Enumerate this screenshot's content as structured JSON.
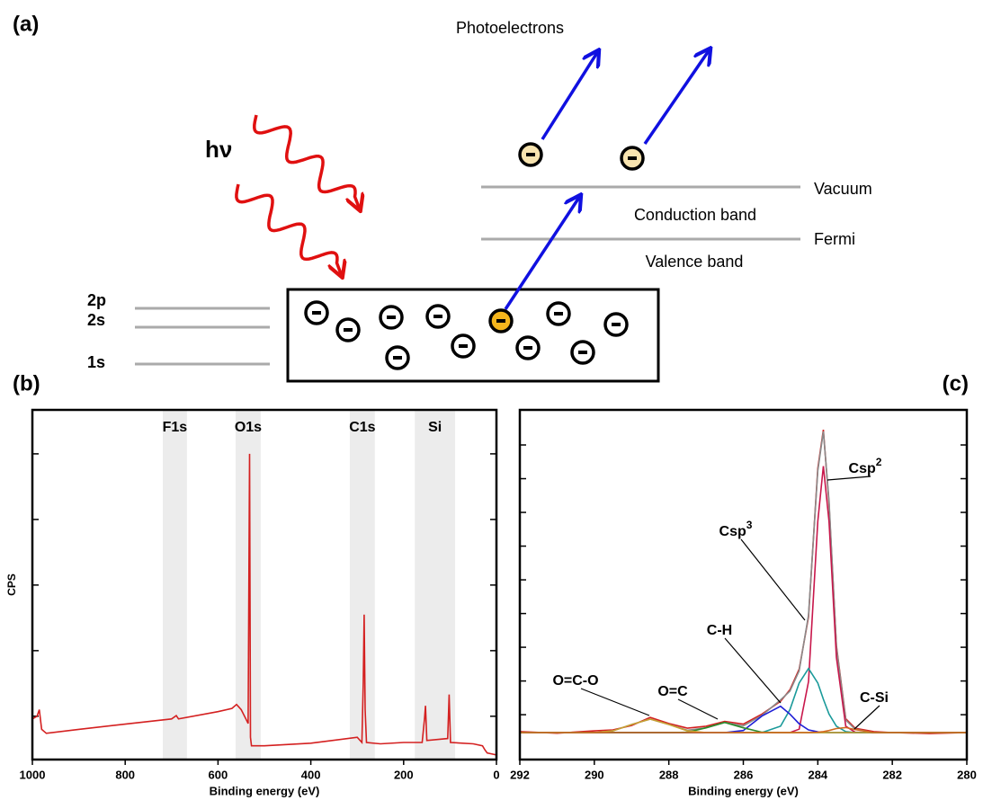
{
  "diagram": {
    "panel": "(a)",
    "photoelectrons": "Photoelectrons",
    "photon": "hν",
    "vacuum": "Vacuum",
    "conduction": "Conduction band",
    "fermi": "Fermi",
    "valence": "Valence band",
    "levels": [
      "2p",
      "2s",
      "1s"
    ]
  },
  "chart_data": [
    {
      "type": "line",
      "panel": "(b)",
      "xlabel": "Binding energy (eV)",
      "ylabel": "CPS",
      "xlim": [
        1000,
        0
      ],
      "xticks": [
        1000,
        800,
        600,
        400,
        200,
        0
      ],
      "ylim": [
        0.34,
        5.67
      ],
      "yticks": [
        1,
        2,
        3,
        4,
        5
      ],
      "bands": [
        {
          "label": "F1s",
          "range": [
            719,
            667
          ]
        },
        {
          "label": "O1s",
          "range": [
            562,
            508
          ]
        },
        {
          "label": "C1s",
          "range": [
            316,
            262
          ]
        },
        {
          "label": "Si",
          "range": [
            176,
            89
          ]
        }
      ],
      "x": [
        1000,
        990,
        985,
        980,
        970,
        900,
        800,
        700,
        690,
        685,
        600,
        570,
        560,
        550,
        540,
        535,
        532,
        530,
        528,
        520,
        500,
        400,
        320,
        300,
        290,
        287,
        285,
        283,
        280,
        250,
        200,
        160,
        155,
        153,
        150,
        105,
        102,
        99,
        50,
        30,
        25,
        20,
        0
      ],
      "series": [
        {
          "color": "#d42020",
          "values": [
            0.96,
            1.0,
            1.1,
            0.8,
            0.74,
            0.8,
            0.88,
            0.96,
            1.01,
            0.96,
            1.07,
            1.12,
            1.18,
            1.1,
            0.96,
            0.89,
            5.0,
            0.68,
            0.55,
            0.55,
            0.55,
            0.59,
            0.66,
            0.68,
            0.6,
            1.51,
            2.55,
            1.1,
            0.6,
            0.58,
            0.6,
            0.6,
            0.96,
            1.16,
            0.63,
            0.66,
            1.33,
            0.6,
            0.58,
            0.55,
            0.49,
            0.44,
            0.41
          ]
        }
      ]
    },
    {
      "type": "line",
      "panel": "(c)",
      "xlabel": "Binding energy (eV)",
      "xlim": [
        292,
        280
      ],
      "xticks": [
        292,
        290,
        288,
        286,
        284,
        282,
        280
      ],
      "ylim": [
        -0.33,
        10.04
      ],
      "yticks": [
        1,
        2,
        3,
        4,
        5,
        6,
        7,
        8,
        9
      ],
      "x": [
        292,
        291,
        290,
        289.5,
        289,
        288.5,
        288,
        287.5,
        287,
        286.5,
        286,
        285.5,
        285,
        284.75,
        284.5,
        284.25,
        284,
        283.85,
        283.7,
        283.5,
        283.25,
        283,
        282.5,
        282,
        281,
        280
      ],
      "series": [
        {
          "color": "#d42020",
          "values": [
            0.5,
            0.45,
            0.52,
            0.55,
            0.68,
            0.92,
            0.74,
            0.6,
            0.66,
            0.8,
            0.72,
            1.02,
            1.4,
            1.74,
            2.35,
            3.9,
            8.3,
            9.45,
            7.25,
            3.05,
            0.88,
            0.6,
            0.5,
            0.47,
            0.44,
            0.47
          ]
        },
        {
          "color": "#8a8a8a",
          "values": [
            0.47,
            0.47,
            0.47,
            0.52,
            0.71,
            0.87,
            0.71,
            0.54,
            0.61,
            0.77,
            0.67,
            0.98,
            1.44,
            1.7,
            2.3,
            3.96,
            8.23,
            9.4,
            7.34,
            3.01,
            0.84,
            0.57,
            0.47,
            0.47,
            0.47,
            0.47
          ]
        },
        {
          "name": "Csp",
          "superscript": "2",
          "color": "#c8174b",
          "values": [
            0.47,
            0.47,
            0.47,
            0.47,
            0.47,
            0.47,
            0.47,
            0.47,
            0.47,
            0.47,
            0.47,
            0.47,
            0.47,
            0.47,
            0.57,
            1.98,
            6.73,
            8.37,
            6.73,
            2.7,
            0.66,
            0.48,
            0.47,
            0.47,
            0.47,
            0.47
          ]
        },
        {
          "name": "Csp",
          "superscript": "3",
          "color": "#1a9a9a",
          "values": [
            0.47,
            0.47,
            0.47,
            0.47,
            0.47,
            0.47,
            0.47,
            0.47,
            0.47,
            0.47,
            0.47,
            0.47,
            0.66,
            1.15,
            1.94,
            2.37,
            1.94,
            1.46,
            1.02,
            0.66,
            0.5,
            0.47,
            0.47,
            0.47,
            0.47,
            0.47
          ]
        },
        {
          "name": "C-H",
          "color": "#1f1fd6",
          "values": [
            0.47,
            0.47,
            0.47,
            0.47,
            0.47,
            0.47,
            0.47,
            0.47,
            0.47,
            0.47,
            0.53,
            0.96,
            1.25,
            1.02,
            0.73,
            0.55,
            0.49,
            0.48,
            0.47,
            0.47,
            0.47,
            0.47,
            0.47,
            0.47,
            0.47,
            0.47
          ]
        },
        {
          "name": "O=C",
          "color": "#2a8a2a",
          "values": [
            0.47,
            0.47,
            0.47,
            0.47,
            0.47,
            0.47,
            0.47,
            0.48,
            0.61,
            0.77,
            0.61,
            0.48,
            0.47,
            0.47,
            0.47,
            0.47,
            0.47,
            0.47,
            0.47,
            0.47,
            0.47,
            0.47,
            0.47,
            0.47,
            0.47,
            0.47
          ]
        },
        {
          "name": "O=C-O",
          "color": "#c8a030",
          "values": [
            0.47,
            0.47,
            0.47,
            0.52,
            0.71,
            0.87,
            0.71,
            0.52,
            0.47,
            0.47,
            0.47,
            0.47,
            0.47,
            0.47,
            0.47,
            0.47,
            0.47,
            0.47,
            0.47,
            0.47,
            0.47,
            0.47,
            0.47,
            0.47,
            0.47,
            0.47
          ]
        },
        {
          "name": "C-Si",
          "color": "#d2691e",
          "values": [
            0.47,
            0.47,
            0.47,
            0.47,
            0.47,
            0.47,
            0.47,
            0.47,
            0.47,
            0.47,
            0.47,
            0.47,
            0.47,
            0.47,
            0.47,
            0.47,
            0.48,
            0.5,
            0.53,
            0.59,
            0.62,
            0.56,
            0.47,
            0.47,
            0.47,
            0.47
          ]
        }
      ]
    }
  ]
}
